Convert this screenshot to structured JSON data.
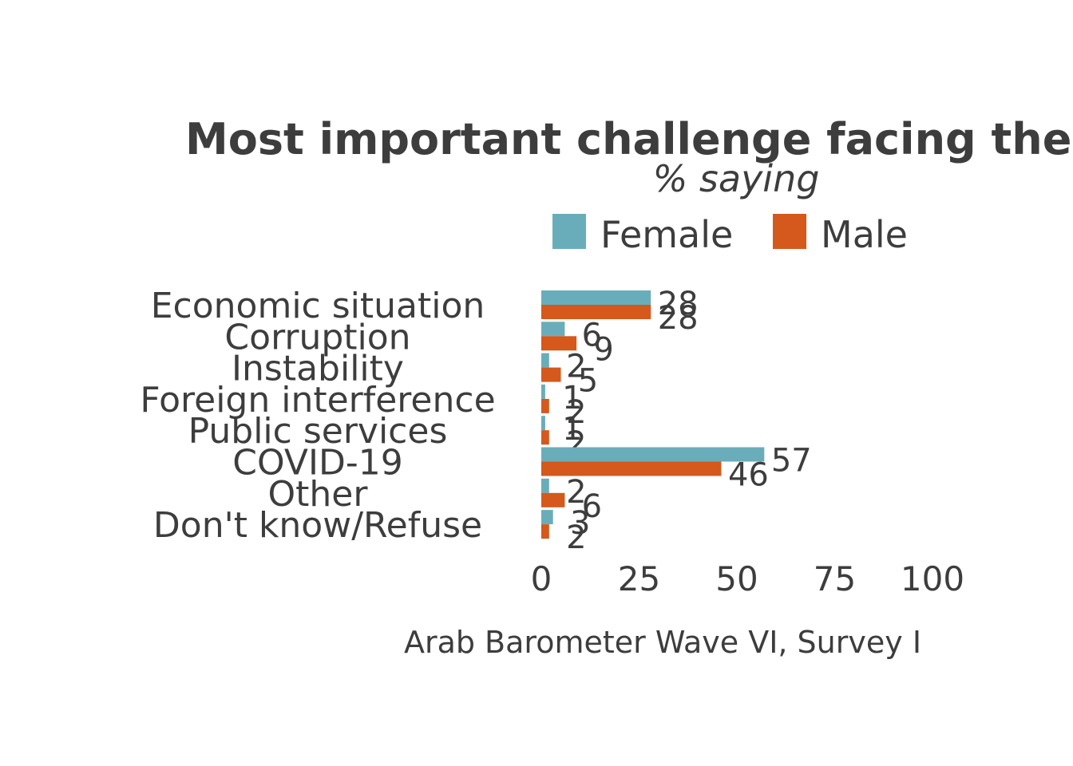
{
  "chart_data": {
    "type": "bar",
    "orientation": "horizontal",
    "title": "Most important challenge facing the",
    "subtitle": "% saying",
    "caption": "Arab Barometer Wave VI, Survey I",
    "categories": [
      "Economic situation",
      "Corruption",
      "Instability",
      "Foreign interference",
      "Public services",
      "COVID-19",
      "Other",
      "Don't know/Refuse"
    ],
    "series": [
      {
        "name": "Female",
        "color": "#6aadba",
        "values": [
          28,
          6,
          2,
          1,
          1,
          57,
          2,
          3
        ]
      },
      {
        "name": "Male",
        "color": "#d5581c",
        "values": [
          28,
          9,
          5,
          2,
          2,
          46,
          6,
          2
        ]
      }
    ],
    "xlim": [
      0,
      100
    ],
    "xticks": [
      "0",
      "25",
      "50",
      "75",
      "100"
    ],
    "legend_position": "top",
    "grid": false,
    "data_labels": true
  }
}
